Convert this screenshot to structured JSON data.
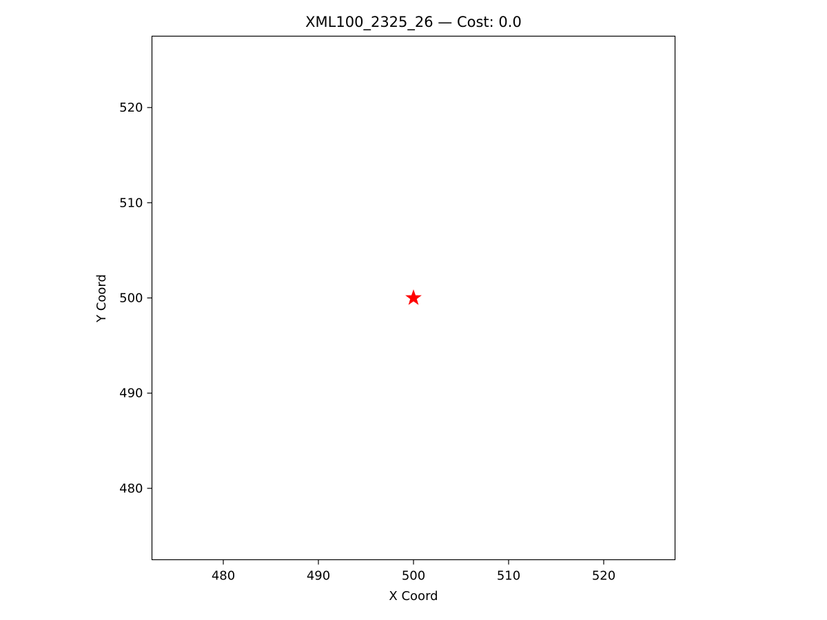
{
  "chart_data": {
    "type": "scatter",
    "title": "XML100_2325_26  —  Cost: 0.0",
    "xlabel": "X Coord",
    "ylabel": "Y Coord",
    "xlim": [
      472.5,
      527.5
    ],
    "ylim": [
      472.5,
      527.5
    ],
    "xticks": [
      480,
      490,
      500,
      510,
      520
    ],
    "yticks": [
      480,
      490,
      500,
      510,
      520
    ],
    "grid": false,
    "legend": "none",
    "series": [
      {
        "marker": "star",
        "color": "#ff0000",
        "points": [
          {
            "x": 500,
            "y": 500
          }
        ]
      }
    ]
  }
}
